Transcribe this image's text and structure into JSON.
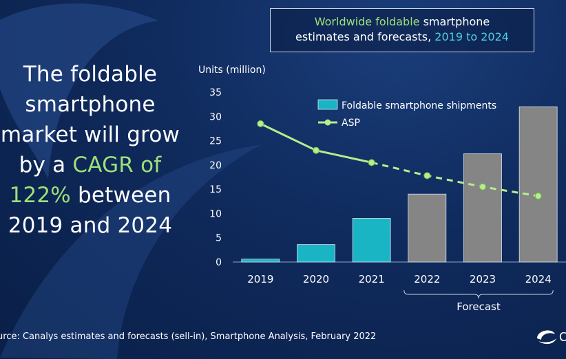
{
  "headline": {
    "line1": "The foldable",
    "line2": "smartphone",
    "line3": "market will grow",
    "line4_pre": "by a ",
    "line4_hl": "CAGR of",
    "line5_hl": "122%",
    "line5_post": " between",
    "line6": "2019 and 2024"
  },
  "title": {
    "part1_green": "Worldwide foldable",
    "part1_rest": " smartphone",
    "part2": "estimates and forecasts, ",
    "part2_cyan": "2019 to 2024"
  },
  "source": "urce: Canalys estimates and forecasts (sell-in), Smartphone Analysis, February 2022",
  "logo_text": "C",
  "colors": {
    "bar_actual": "#1ab5c4",
    "bar_forecast": "#858585",
    "asp_line": "#b8ec8c",
    "accent_green": "#9ee07a",
    "accent_cyan": "#4fd0e0"
  },
  "chart_data": {
    "type": "bar",
    "ylabel": "Units (million)",
    "ylim": [
      0,
      35
    ],
    "yticks": [
      0,
      5,
      10,
      15,
      20,
      25,
      30,
      35
    ],
    "categories": [
      "2019",
      "2020",
      "2021",
      "2022",
      "2023",
      "2024"
    ],
    "series": [
      {
        "name": "Foldable smartphone shipments",
        "kind": "bar",
        "values": [
          0.6,
          3.6,
          9.0,
          14.0,
          22.3,
          32.0
        ],
        "forecast_from_index": 3
      },
      {
        "name": "ASP",
        "kind": "line",
        "values": [
          28.5,
          23.0,
          20.5,
          17.8,
          15.5,
          13.6
        ],
        "dashed_from_index": 2
      }
    ],
    "annotation": "Forecast",
    "annotation_categories": [
      "2022",
      "2023",
      "2024"
    ],
    "legend_position": "top-right",
    "grid": false
  }
}
